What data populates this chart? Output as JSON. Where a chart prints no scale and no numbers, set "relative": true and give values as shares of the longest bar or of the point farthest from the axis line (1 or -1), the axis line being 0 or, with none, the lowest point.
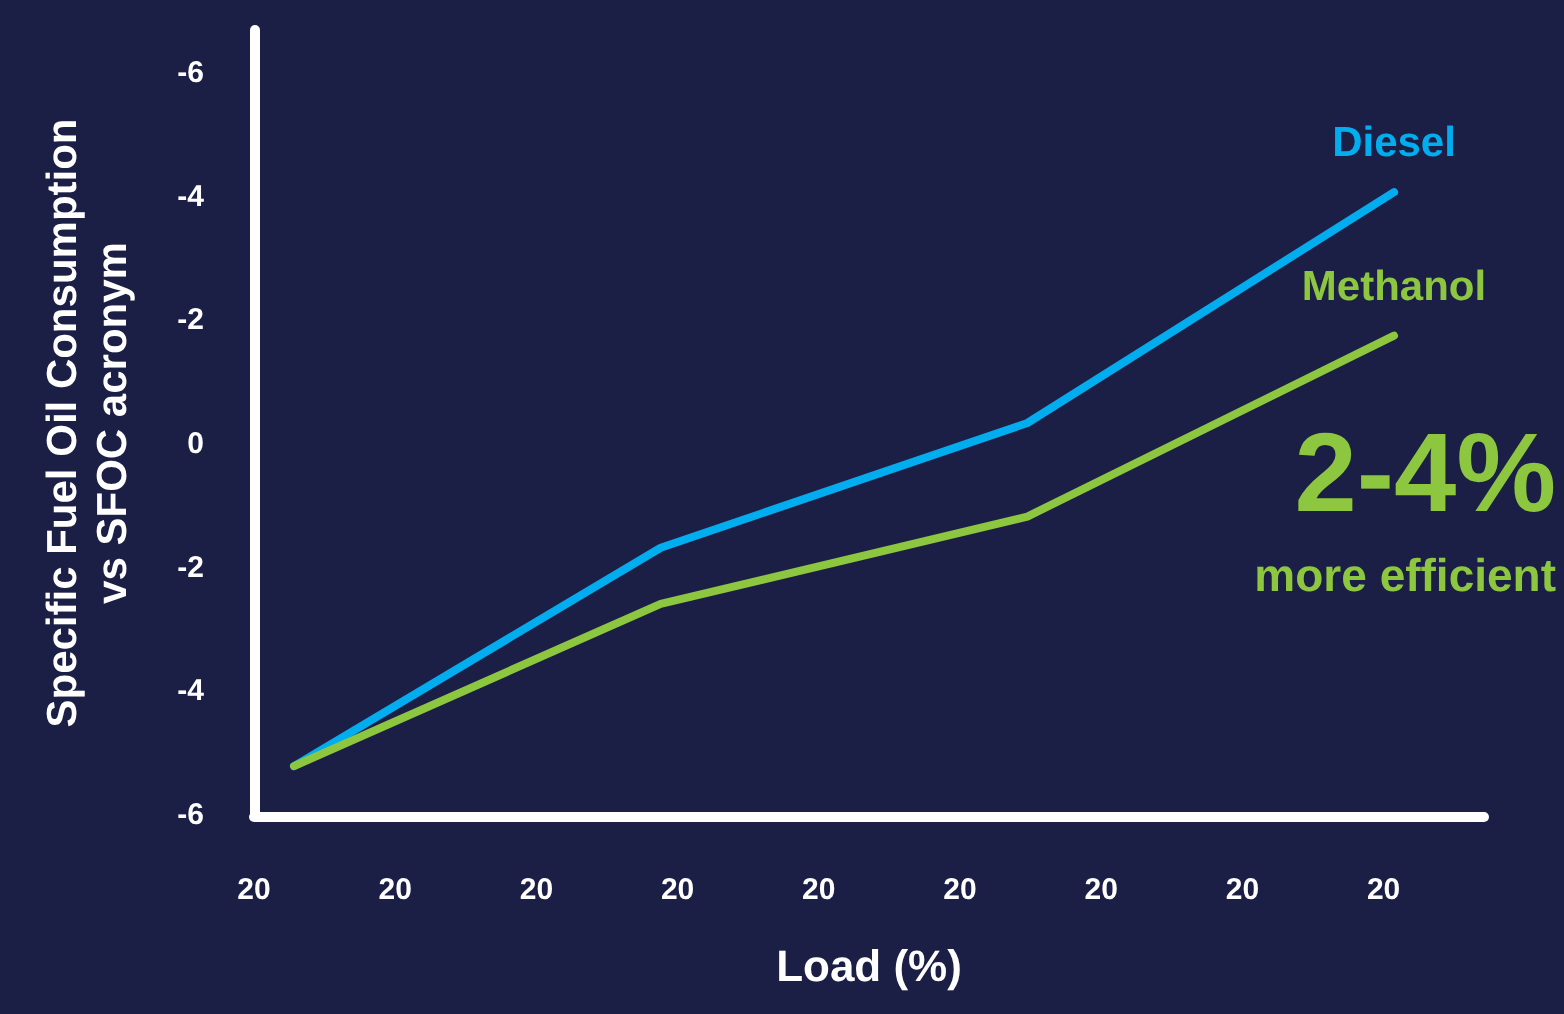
{
  "chart_data": {
    "type": "line",
    "xlabel": "Load (%)",
    "ylabel": "Specific Fuel Oil Consumption\nvs SFOC acronym",
    "relative": true,
    "categories": [
      null,
      null,
      null,
      null
    ],
    "series": [
      {
        "name": "Diesel",
        "color": "#00aeef",
        "values": [
          0.08,
          0.43,
          0.63,
          1
        ]
      },
      {
        "name": "Methanol",
        "color": "#8dc63f",
        "values": [
          0.08,
          0.34,
          0.48,
          0.77
        ]
      }
    ],
    "annotations": [
      "-6",
      "-4",
      "-2",
      "0",
      "-2",
      "-4",
      "-6",
      "20",
      "20",
      "20",
      "20",
      "20",
      "20",
      "20",
      "20",
      "20",
      "2-4%",
      "more efficient"
    ],
    "grid": false,
    "legend": false,
    "marker": "none",
    "line_style": "solid"
  }
}
